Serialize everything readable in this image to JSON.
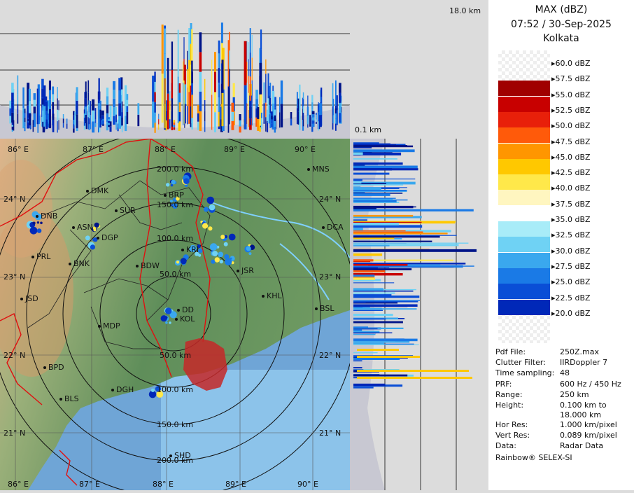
{
  "header": {
    "product": "MAX (dBZ)",
    "datetime": "07:52 / 30-Sep-2025",
    "station": "Kolkata"
  },
  "top_panel": {
    "height_top_label": "18.0 km"
  },
  "right_panel": {
    "height_bottom_label": "0.1 km"
  },
  "legend": [
    {
      "label": "60.0 dBZ",
      "color": "transparent"
    },
    {
      "label": "57.5 dBZ",
      "color": "#a00000"
    },
    {
      "label": "55.0 dBZ",
      "color": "#c80000"
    },
    {
      "label": "52.5 dBZ",
      "color": "#e8200a"
    },
    {
      "label": "50.0 dBZ",
      "color": "#ff5a0a"
    },
    {
      "label": "47.5 dBZ",
      "color": "#ff9600"
    },
    {
      "label": "45.0 dBZ",
      "color": "#ffc800"
    },
    {
      "label": "42.5 dBZ",
      "color": "#ffe84a"
    },
    {
      "label": "40.0 dBZ",
      "color": "#fff6c0"
    },
    {
      "label": "37.5 dBZ",
      "color": "#ffffff"
    },
    {
      "label": "35.0 dBZ",
      "color": "#a8ecf8"
    },
    {
      "label": "32.5 dBZ",
      "color": "#6fd2f4"
    },
    {
      "label": "30.0 dBZ",
      "color": "#3aa8ee"
    },
    {
      "label": "27.5 dBZ",
      "color": "#1a7ae6"
    },
    {
      "label": "25.0 dBZ",
      "color": "#0a4ed6"
    },
    {
      "label": "22.5 dBZ",
      "color": "#0028b8"
    },
    {
      "label": "20.0 dBZ",
      "color": "#001488"
    }
  ],
  "metadata": [
    {
      "key": "Pdf File:",
      "value": "250Z.max"
    },
    {
      "key": "Clutter Filter:",
      "value": "IIRDoppler 7"
    },
    {
      "key": "Time sampling:",
      "value": "48"
    },
    {
      "key": "PRF:",
      "value": "600 Hz / 450 Hz"
    },
    {
      "key": "Range:",
      "value": "250 km"
    },
    {
      "key": "Height:",
      "value": "0.100 km to"
    },
    {
      "key": "",
      "value": "18.000 km"
    },
    {
      "key": "Hor Res:",
      "value": "1.000 km/pixel"
    },
    {
      "key": "Vert Res:",
      "value": "0.089 km/pixel"
    },
    {
      "key": "Data:",
      "value": "Radar Data"
    }
  ],
  "footer": "Rainbow® SELEX-SI",
  "map": {
    "lon_labels_top": [
      "86° E",
      "87° E",
      "88° E",
      "89° E",
      "90° E"
    ],
    "lon_labels_bottom": [
      "86° E",
      "87° E",
      "88° E",
      "89° E",
      "90° E"
    ],
    "lat_labels_left": [
      "24° N",
      "23° N",
      "22° N",
      "21° N"
    ],
    "lat_labels_right": [
      "24° N",
      "23° N",
      "22° N",
      "21° N"
    ],
    "range_rings": [
      "50.0 km",
      "100.0 km",
      "150.0 km",
      "200.0 km"
    ],
    "range_rings_south": [
      "50.0 km",
      "100.0 km",
      "150.0 km",
      "200.0 km"
    ],
    "cities": [
      "MNS",
      "DMK",
      "BRP",
      "SUR",
      "DNB",
      "ASN",
      "DGP",
      "DCA",
      "KRI",
      "PRL",
      "BNK",
      "BDW",
      "JSR",
      "KHL",
      "JSD",
      "DD",
      "KOL",
      "BSL",
      "MDP",
      "BPD",
      "DGH",
      "BLS",
      "SHD"
    ]
  }
}
